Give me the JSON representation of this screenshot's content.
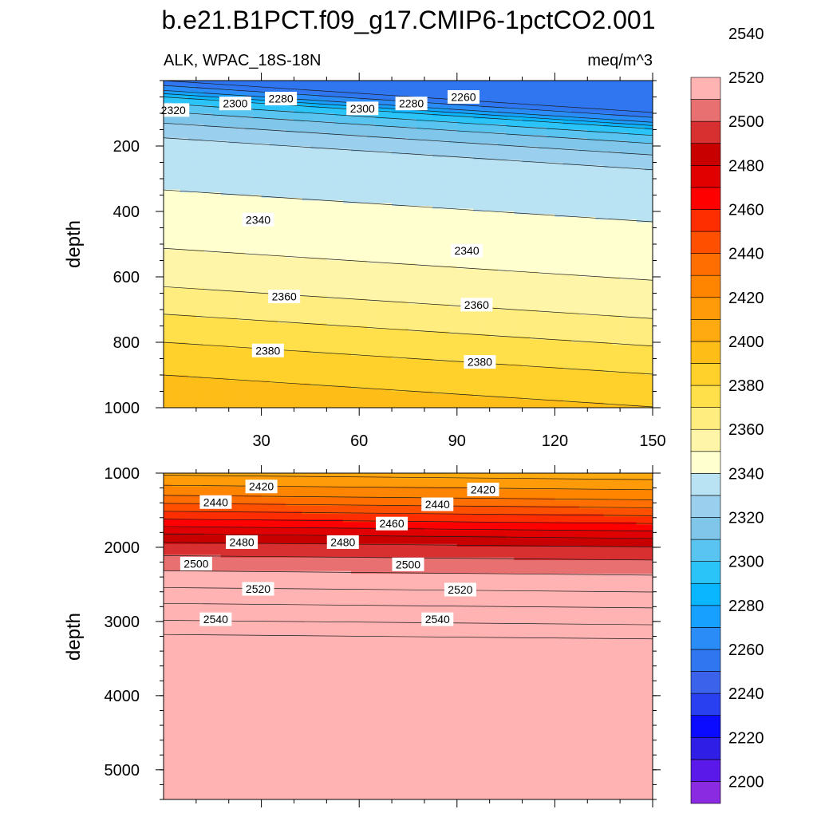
{
  "title": "b.e21.B1PCT.f09_g17.CMIP6-1pctCO2.001",
  "left_subtitle": "ALK, WPAC_18S-18N",
  "right_subtitle": "meq/m^3",
  "chart_data": [
    {
      "type": "heatmap",
      "panel": "upper",
      "variable": "ALK",
      "region": "WPAC_18S-18N",
      "units": "meq/m^3",
      "x": [
        0,
        30,
        60,
        90,
        120,
        150
      ],
      "xlim": [
        0,
        150
      ],
      "xticks": [
        "30",
        "60",
        "90",
        "120",
        "150"
      ],
      "ylabel": "depth",
      "ylim": [
        0,
        1000
      ],
      "yticks": [
        "200",
        "400",
        "600",
        "800",
        "1000"
      ],
      "contour_profile": {
        "depth": [
          0,
          30,
          50,
          80,
          110,
          150,
          200,
          300,
          420,
          550,
          650,
          730,
          800,
          900,
          1000
        ],
        "value_at_x0": [
          2250,
          2270,
          2290,
          2305,
          2315,
          2325,
          2335,
          2338,
          2345,
          2352,
          2362,
          2372,
          2380,
          2390,
          2398
        ]
      },
      "depth_shift_per_x": 0.65,
      "contour_labels": [
        {
          "text": "2320",
          "x": 3,
          "depth": 90
        },
        {
          "text": "2300",
          "x": 22,
          "depth": 70
        },
        {
          "text": "2280",
          "x": 36,
          "depth": 55
        },
        {
          "text": "2300",
          "x": 61,
          "depth": 85
        },
        {
          "text": "2280",
          "x": 76,
          "depth": 70
        },
        {
          "text": "2260",
          "x": 92,
          "depth": 50
        },
        {
          "text": "2340",
          "x": 29,
          "depth": 425
        },
        {
          "text": "2340",
          "x": 93,
          "depth": 520
        },
        {
          "text": "2360",
          "x": 37,
          "depth": 660
        },
        {
          "text": "2360",
          "x": 96,
          "depth": 685
        },
        {
          "text": "2380",
          "x": 32,
          "depth": 825
        },
        {
          "text": "2380",
          "x": 97,
          "depth": 860
        }
      ]
    },
    {
      "type": "heatmap",
      "panel": "lower",
      "x": [
        0,
        30,
        60,
        90,
        120,
        150
      ],
      "xlim": [
        0,
        150
      ],
      "ylabel": "depth",
      "ylim": [
        1000,
        5400
      ],
      "yticks": [
        "1000",
        "2000",
        "3000",
        "4000",
        "5000"
      ],
      "contour_profile": {
        "depth": [
          1000,
          1300,
          1600,
          1900,
          2200,
          2500,
          2800,
          3100,
          3250,
          5400
        ],
        "value_at_x0": [
          2408,
          2430,
          2458,
          2488,
          2505,
          2518,
          2532,
          2545,
          2555,
          2555
        ]
      },
      "depth_shift_per_x": 0.4,
      "contour_labels": [
        {
          "text": "2420",
          "x": 30,
          "depth": 1180
        },
        {
          "text": "2420",
          "x": 98,
          "depth": 1220
        },
        {
          "text": "2440",
          "x": 16,
          "depth": 1390
        },
        {
          "text": "2440",
          "x": 84,
          "depth": 1420
        },
        {
          "text": "2460",
          "x": 70,
          "depth": 1680
        },
        {
          "text": "2480",
          "x": 24,
          "depth": 1930
        },
        {
          "text": "2480",
          "x": 55,
          "depth": 1930
        },
        {
          "text": "2500",
          "x": 10,
          "depth": 2220
        },
        {
          "text": "2500",
          "x": 75,
          "depth": 2230
        },
        {
          "text": "2520",
          "x": 29,
          "depth": 2560
        },
        {
          "text": "2520",
          "x": 91,
          "depth": 2570
        },
        {
          "text": "2540",
          "x": 16,
          "depth": 2970
        },
        {
          "text": "2540",
          "x": 84,
          "depth": 2970
        }
      ]
    }
  ],
  "colorbar": {
    "min": 2190,
    "step": 10,
    "labels": [
      "2200",
      "2220",
      "2240",
      "2260",
      "2280",
      "2300",
      "2320",
      "2340",
      "2360",
      "2380",
      "2400",
      "2420",
      "2440",
      "2460",
      "2480",
      "2500",
      "2520",
      "2540"
    ],
    "colors": [
      "#8a2be2",
      "#5a19e8",
      "#2e1ee6",
      "#0b0bff",
      "#2840f0",
      "#3a62ea",
      "#2f76f0",
      "#2a8cf6",
      "#16a0ff",
      "#09b6ff",
      "#2bc4f8",
      "#5ac4f0",
      "#80c6ea",
      "#9acfee",
      "#b9e2f3",
      "#ffffd0",
      "#fff5a8",
      "#ffed80",
      "#ffe04a",
      "#ffd12a",
      "#ffbd18",
      "#ffaa10",
      "#ff9a08",
      "#ff8400",
      "#ff6e00",
      "#ff5000",
      "#ff2e00",
      "#ff0000",
      "#e00000",
      "#c80000",
      "#d83030",
      "#e87070",
      "#ffb3b3"
    ]
  }
}
